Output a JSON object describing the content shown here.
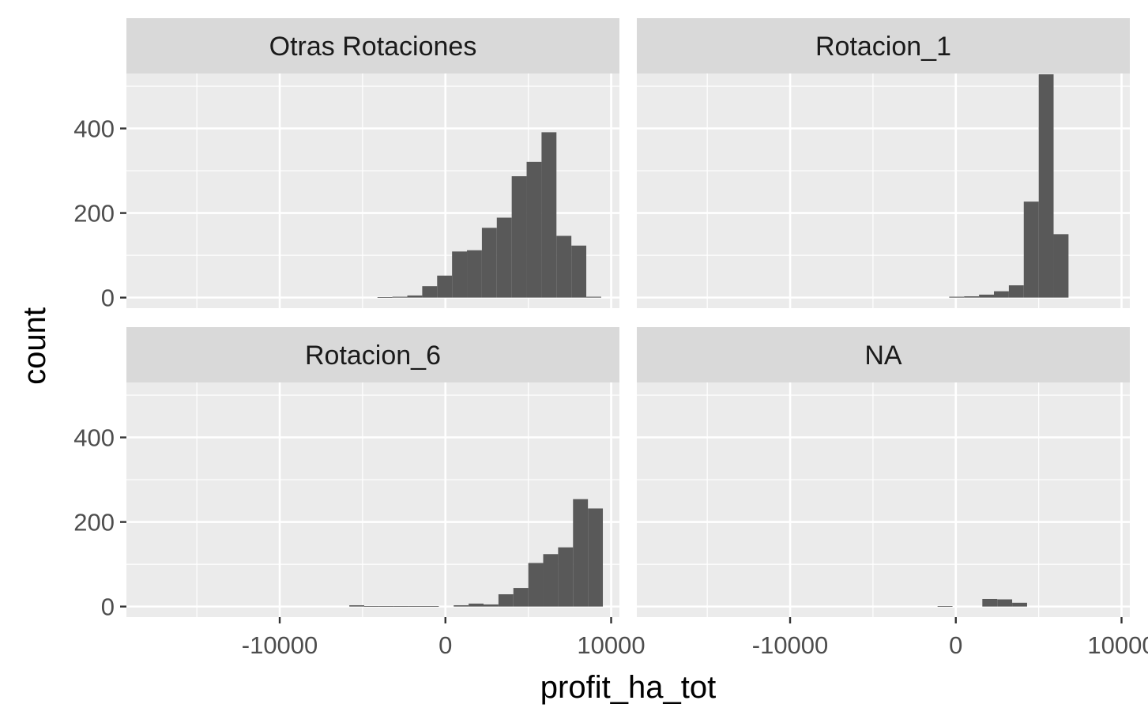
{
  "chart_data": {
    "type": "bar",
    "xlabel": "profit_ha_tot",
    "ylabel": "count",
    "xlim": [
      -19250,
      10500
    ],
    "ylim": [
      -25,
      530
    ],
    "x_breaks": [
      -10000,
      0,
      10000
    ],
    "x_tick_labels": [
      "-10000",
      "0",
      "10000"
    ],
    "y_breaks": [
      0,
      200,
      400
    ],
    "y_tick_labels": [
      "0",
      "200",
      "400"
    ],
    "bin_width": 900,
    "bar_color": "#595959",
    "panel_bg": "#ebebeb",
    "strip_bg": "#d9d9d9",
    "panels": [
      {
        "name": "Otras Rotaciones",
        "bins": [
          {
            "x0": -4100,
            "count": 1
          },
          {
            "x0": -3200,
            "count": 2
          },
          {
            "x0": -2300,
            "count": 5
          },
          {
            "x0": -1400,
            "count": 27
          },
          {
            "x0": -500,
            "count": 52
          },
          {
            "x0": 400,
            "count": 109
          },
          {
            "x0": 1300,
            "count": 112
          },
          {
            "x0": 2200,
            "count": 165
          },
          {
            "x0": 3100,
            "count": 189
          },
          {
            "x0": 4000,
            "count": 287
          },
          {
            "x0": 4900,
            "count": 321
          },
          {
            "x0": 5800,
            "count": 391
          },
          {
            "x0": 6700,
            "count": 146
          },
          {
            "x0": 7600,
            "count": 123
          },
          {
            "x0": 8500,
            "count": 2
          }
        ]
      },
      {
        "name": "Rotacion_1",
        "bins": [
          {
            "x0": -400,
            "count": 2
          },
          {
            "x0": 500,
            "count": 3
          },
          {
            "x0": 1400,
            "count": 7
          },
          {
            "x0": 2300,
            "count": 15
          },
          {
            "x0": 3200,
            "count": 29
          },
          {
            "x0": 4100,
            "count": 227
          },
          {
            "x0": 5000,
            "count": 528
          },
          {
            "x0": 5900,
            "count": 150
          }
        ]
      },
      {
        "name": "Rotacion_6",
        "bins": [
          {
            "x0": -5800,
            "count": 3
          },
          {
            "x0": -4900,
            "count": 1
          },
          {
            "x0": -4000,
            "count": 1
          },
          {
            "x0": -3100,
            "count": 1
          },
          {
            "x0": -2200,
            "count": 1
          },
          {
            "x0": -1300,
            "count": 1
          },
          {
            "x0": 500,
            "count": 3
          },
          {
            "x0": 1400,
            "count": 7
          },
          {
            "x0": 2300,
            "count": 5
          },
          {
            "x0": 3200,
            "count": 29
          },
          {
            "x0": 4100,
            "count": 44
          },
          {
            "x0": 5000,
            "count": 103
          },
          {
            "x0": 5900,
            "count": 124
          },
          {
            "x0": 6800,
            "count": 140
          },
          {
            "x0": 7700,
            "count": 254
          },
          {
            "x0": 8600,
            "count": 232
          }
        ]
      },
      {
        "name": "NA",
        "bins": [
          {
            "x0": -1100,
            "count": 1
          },
          {
            "x0": 1600,
            "count": 18
          },
          {
            "x0": 2500,
            "count": 17
          },
          {
            "x0": 3400,
            "count": 9
          }
        ]
      }
    ]
  }
}
